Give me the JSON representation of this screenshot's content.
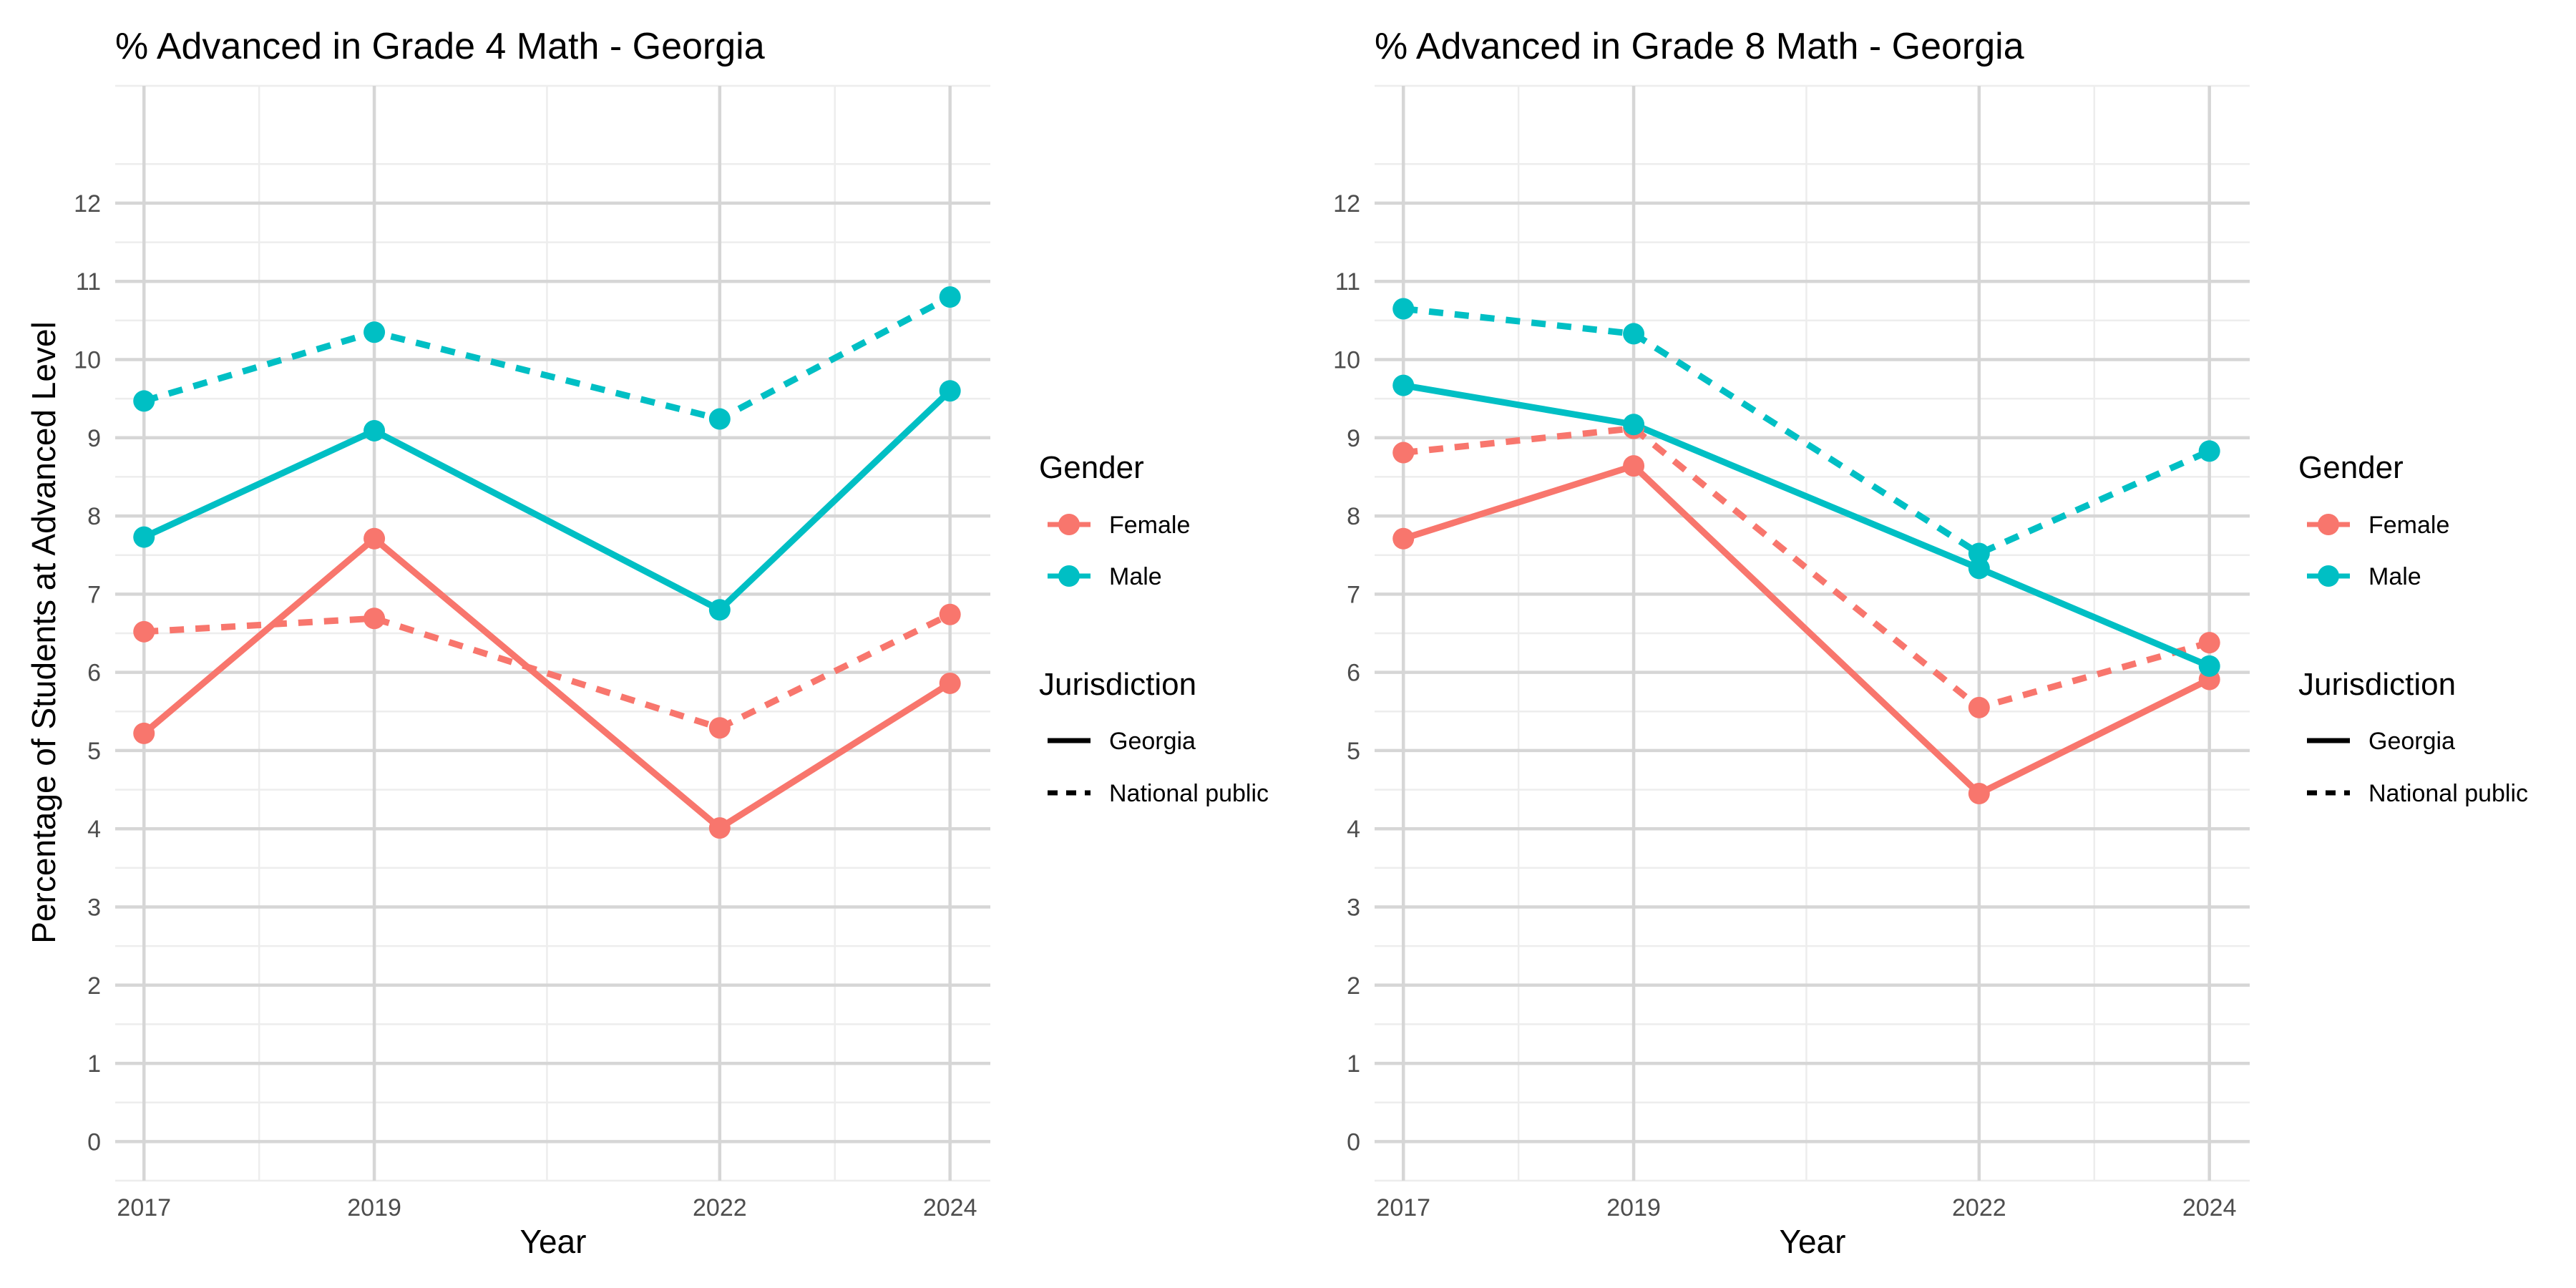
{
  "figure": {
    "y_axis_label": "Percentage of Students at Advanced Level"
  },
  "chart_data": [
    {
      "type": "line",
      "title": "% Advanced in Grade 4 Math - Georgia",
      "xlabel": "Year",
      "ylabel": "Percentage of Students at Advanced Level",
      "x_ticks": [
        2017,
        2019,
        2022,
        2024
      ],
      "y_ticks": [
        0,
        1,
        2,
        3,
        4,
        5,
        6,
        7,
        8,
        9,
        10,
        11,
        12
      ],
      "xlim": [
        2016.75,
        2024.35
      ],
      "ylim": [
        -0.5,
        13.5
      ],
      "grid": true,
      "series": [
        {
          "gender": "Female",
          "jurisdiction": "Georgia",
          "x": [
            2017,
            2019,
            2022,
            2024
          ],
          "y": [
            5.22,
            7.71,
            4.01,
            5.86
          ]
        },
        {
          "gender": "Female",
          "jurisdiction": "National public",
          "x": [
            2017,
            2019,
            2022,
            2024
          ],
          "y": [
            6.52,
            6.69,
            5.29,
            6.74
          ]
        },
        {
          "gender": "Male",
          "jurisdiction": "Georgia",
          "x": [
            2017,
            2019,
            2022,
            2024
          ],
          "y": [
            7.73,
            9.09,
            6.8,
            9.6
          ]
        },
        {
          "gender": "Male",
          "jurisdiction": "National public",
          "x": [
            2017,
            2019,
            2022,
            2024
          ],
          "y": [
            9.47,
            10.35,
            9.24,
            10.8
          ]
        }
      ]
    },
    {
      "type": "line",
      "title": "% Advanced in Grade 8 Math - Georgia",
      "xlabel": "Year",
      "ylabel": "",
      "x_ticks": [
        2017,
        2019,
        2022,
        2024
      ],
      "y_ticks": [
        0,
        1,
        2,
        3,
        4,
        5,
        6,
        7,
        8,
        9,
        10,
        11,
        12
      ],
      "xlim": [
        2016.75,
        2024.35
      ],
      "ylim": [
        -0.5,
        13.5
      ],
      "grid": true,
      "series": [
        {
          "gender": "Female",
          "jurisdiction": "Georgia",
          "x": [
            2017,
            2019,
            2022,
            2024
          ],
          "y": [
            7.71,
            8.64,
            4.45,
            5.91
          ]
        },
        {
          "gender": "Female",
          "jurisdiction": "National public",
          "x": [
            2017,
            2019,
            2022,
            2024
          ],
          "y": [
            8.81,
            9.12,
            5.55,
            6.38
          ]
        },
        {
          "gender": "Male",
          "jurisdiction": "Georgia",
          "x": [
            2017,
            2019,
            2022,
            2024
          ],
          "y": [
            9.67,
            9.17,
            7.33,
            6.08
          ]
        },
        {
          "gender": "Male",
          "jurisdiction": "National public",
          "x": [
            2017,
            2019,
            2022,
            2024
          ],
          "y": [
            10.65,
            10.33,
            7.52,
            8.83
          ]
        }
      ]
    }
  ],
  "legend": {
    "placement": "right of each panel",
    "gender_title": "Gender",
    "gender_items": [
      {
        "label": "Female",
        "color": "#f8766d"
      },
      {
        "label": "Male",
        "color": "#00bfc4"
      }
    ],
    "jurisdiction_title": "Jurisdiction",
    "jurisdiction_items": [
      {
        "label": "Georgia",
        "line": "solid"
      },
      {
        "label": "National public",
        "line": "dashed"
      }
    ]
  }
}
